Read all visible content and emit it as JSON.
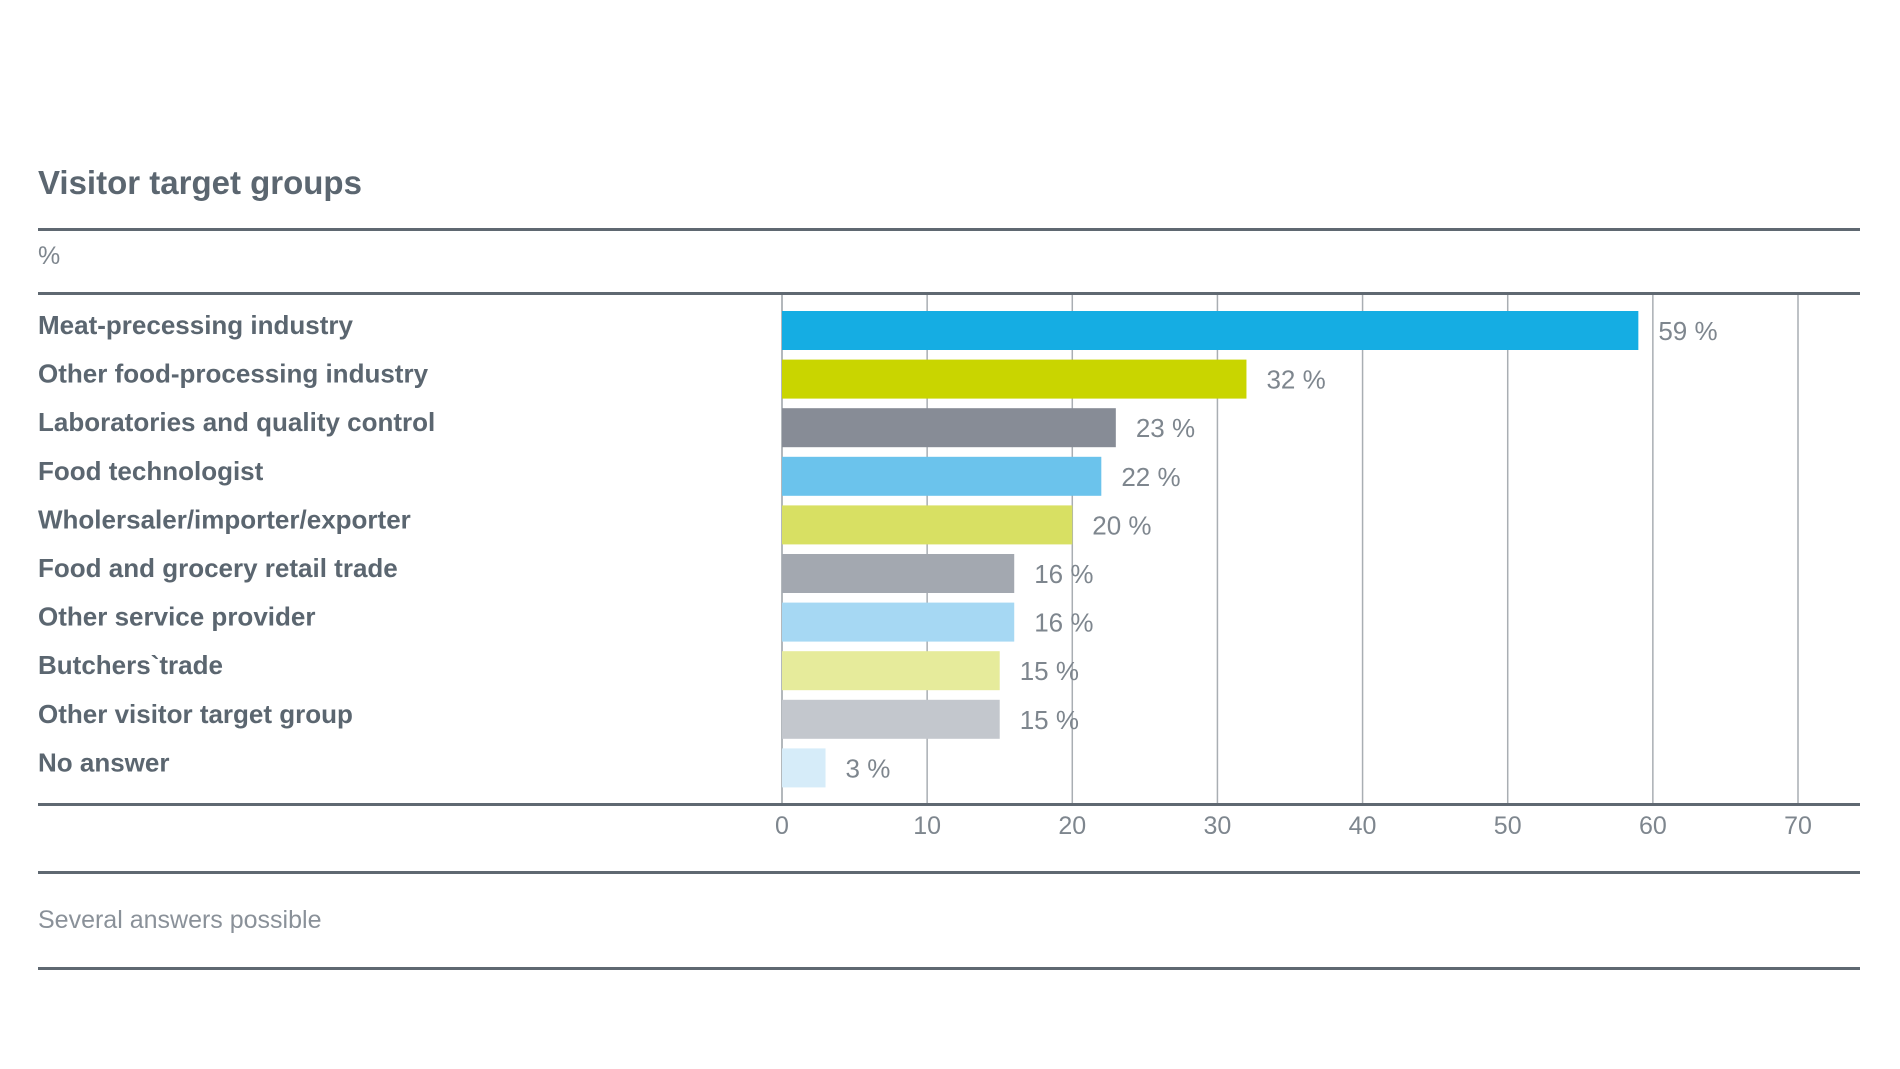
{
  "chart_data": {
    "type": "bar",
    "orientation": "horizontal",
    "title": "Visitor target groups",
    "unit_label": "%",
    "footnote": "Several answers possible",
    "categories": [
      "Meat-precessing industry",
      "Other food-processing industry",
      "Laboratories and quality control",
      "Food technologist",
      "Wholersaler/importer/exporter",
      "Food and grocery retail trade",
      "Other service provider",
      "Butchers`trade",
      "Other visitor target group",
      "No answer"
    ],
    "values": [
      59,
      32,
      23,
      22,
      20,
      16,
      16,
      15,
      15,
      3
    ],
    "value_labels": [
      "59 %",
      "32 %",
      "23 %",
      "22 %",
      "20 %",
      "16 %",
      "16 %",
      "15 %",
      "15 %",
      "3 %"
    ],
    "colors": [
      "#15ade3",
      "#c9d500",
      "#878c96",
      "#6bc3ec",
      "#d8e063",
      "#a3a8b0",
      "#a6d8f3",
      "#e6eb9b",
      "#c3c7cd",
      "#d6ecf9"
    ],
    "xlim": [
      0,
      70
    ],
    "xticks": [
      "0",
      "10",
      "20",
      "30",
      "40",
      "50",
      "60",
      "70"
    ],
    "grid": true
  }
}
